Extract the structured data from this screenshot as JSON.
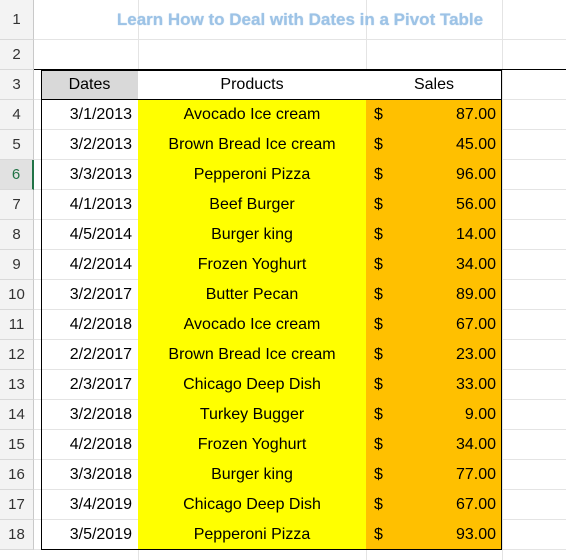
{
  "sheet": {
    "title": "Learn How to Deal with Dates in a Pivot Table",
    "row_numbers": [
      "1",
      "2",
      "3",
      "4",
      "5",
      "6",
      "7",
      "8",
      "9",
      "10",
      "11",
      "12",
      "13",
      "14",
      "15",
      "16",
      "17",
      "18"
    ],
    "active_row": "6",
    "headers": {
      "dates": "Dates",
      "products": "Products",
      "sales": "Sales"
    },
    "currency_symbol": "$",
    "rows": [
      {
        "date": "3/1/2013",
        "product": "Avocado Ice cream",
        "sales": "87.00"
      },
      {
        "date": "3/2/2013",
        "product": "Brown Bread Ice cream",
        "sales": "45.00"
      },
      {
        "date": "3/3/2013",
        "product": "Pepperoni Pizza",
        "sales": "96.00"
      },
      {
        "date": "4/1/2013",
        "product": "Beef Burger",
        "sales": "56.00"
      },
      {
        "date": "4/5/2014",
        "product": "Burger king",
        "sales": "14.00"
      },
      {
        "date": "4/2/2014",
        "product": "Frozen Yoghurt",
        "sales": "34.00"
      },
      {
        "date": "3/2/2017",
        "product": "Butter Pecan",
        "sales": "89.00"
      },
      {
        "date": "4/2/2018",
        "product": "Avocado Ice cream",
        "sales": "67.00"
      },
      {
        "date": "2/2/2017",
        "product": "Brown Bread Ice cream",
        "sales": "23.00"
      },
      {
        "date": "2/3/2017",
        "product": "Chicago Deep Dish",
        "sales": "33.00"
      },
      {
        "date": "3/2/2018",
        "product": "Turkey Bugger",
        "sales": "9.00"
      },
      {
        "date": "4/2/2018",
        "product": "Frozen Yoghurt",
        "sales": "34.00"
      },
      {
        "date": "3/3/2018",
        "product": "Burger king",
        "sales": "77.00"
      },
      {
        "date": "3/4/2019",
        "product": "Chicago Deep Dish",
        "sales": "67.00"
      },
      {
        "date": "3/5/2019",
        "product": "Pepperoni Pizza",
        "sales": "93.00"
      }
    ],
    "colors": {
      "title": "#9dc3e6",
      "product_fill": "#ffff00",
      "sales_fill": "#ffc000",
      "dates_header_fill": "#d9d9d9",
      "active_row_accent": "#217346"
    }
  }
}
